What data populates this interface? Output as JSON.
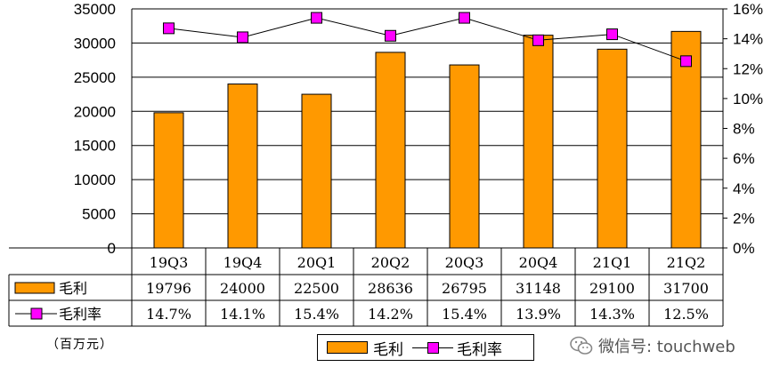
{
  "colors": {
    "bar": "#ff9900",
    "marker": "#ff00ff",
    "line": "#000000"
  },
  "unit_note": "（百万元）",
  "watermark": {
    "text": "微信号: touchweb",
    "icon": "wechat-icon"
  },
  "legend": {
    "bar_label": "毛利",
    "line_label": "毛利率"
  },
  "table": {
    "rows": [
      {
        "label": "毛利",
        "values": [
          "19796",
          "24000",
          "22500",
          "28636",
          "26795",
          "31148",
          "29100",
          "31700"
        ]
      },
      {
        "label": "毛利率",
        "values": [
          "14.7%",
          "14.1%",
          "15.4%",
          "14.2%",
          "15.4%",
          "13.9%",
          "14.3%",
          "12.5%"
        ]
      }
    ]
  },
  "chart_data": {
    "type": "bar",
    "categories": [
      "19Q3",
      "19Q4",
      "20Q1",
      "20Q2",
      "20Q3",
      "20Q4",
      "21Q1",
      "21Q2"
    ],
    "series": [
      {
        "name": "毛利",
        "type": "bar",
        "axis": "left",
        "values": [
          19796,
          24000,
          22500,
          28636,
          26795,
          31148,
          29100,
          31700
        ]
      },
      {
        "name": "毛利率",
        "type": "line",
        "axis": "right",
        "values": [
          14.7,
          14.1,
          15.4,
          14.2,
          15.4,
          13.9,
          14.3,
          12.5
        ]
      }
    ],
    "ylim_left": [
      0,
      35000
    ],
    "yticks_left": [
      "0",
      "5000",
      "10000",
      "15000",
      "20000",
      "25000",
      "30000",
      "35000"
    ],
    "ylim_right": [
      0,
      16
    ],
    "yticks_right": [
      "0%",
      "2%",
      "4%",
      "6%",
      "8%",
      "10%",
      "12%",
      "14%",
      "16%"
    ],
    "grid": true,
    "legend_position": "bottom"
  }
}
